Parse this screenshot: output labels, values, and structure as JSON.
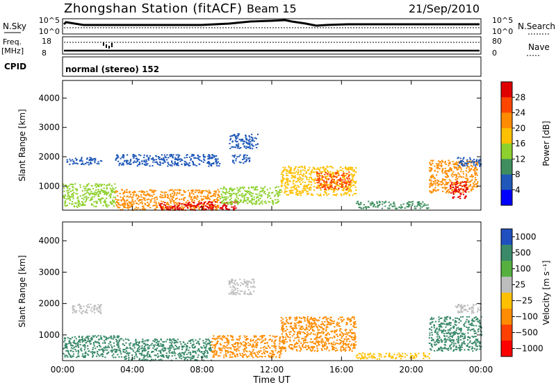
{
  "header": {
    "station": "Zhongshan Station (fitACF)",
    "beam": "Beam 15",
    "date": "21/Sep/2010"
  },
  "summary": {
    "nsky_label": "N.Sky",
    "nsky_ticks": [
      "10^5",
      "10^0"
    ],
    "nsearch_label": "N.Search",
    "nsearch_ticks": [
      "10^5",
      "10^0"
    ],
    "freq_label": [
      "Freq.",
      "[MHz]"
    ],
    "freq_ticks": [
      "18",
      "8"
    ],
    "nave_label": "Nave",
    "nave_ticks": [
      "80",
      "0"
    ],
    "cpid_label": "CPID",
    "cpid_text": "normal (stereo) 152"
  },
  "chart_data": [
    {
      "type": "heatmap",
      "title": "Power",
      "ylabel": "Slant Range [km]",
      "ylim": [
        180,
        4600
      ],
      "yticks": [
        "4000",
        "3000",
        "2000",
        "1000"
      ],
      "xlabel": "Time UT",
      "xticks": [
        "00:00",
        "04:00",
        "08:00",
        "12:00",
        "16:00",
        "20:00",
        "00:00"
      ],
      "colorbar_label": "Power [dB]",
      "colorbar_ticks": [
        "28",
        "24",
        "20",
        "16",
        "12",
        "8",
        "4"
      ],
      "colorbar_colors": [
        "#e10000",
        "#ff4600",
        "#ff8c00",
        "#ffc000",
        "#8ed12e",
        "#3f8f5e",
        "#1f58b8",
        "#0000ff"
      ],
      "regions": [
        {
          "t": [
            0.2,
            2.2
          ],
          "r": [
            1750,
            2000
          ],
          "level": "#1f58b8"
        },
        {
          "t": [
            9.5,
            11.2
          ],
          "r": [
            2300,
            2800
          ],
          "level": "#1f58b8"
        },
        {
          "t": [
            9.7,
            10.7
          ],
          "r": [
            1800,
            2100
          ],
          "level": "#1f58b8"
        },
        {
          "t": [
            3.0,
            9.0
          ],
          "r": [
            1700,
            2100
          ],
          "level": "#1f58b8"
        },
        {
          "t": [
            0.0,
            3.0
          ],
          "r": [
            300,
            1100
          ],
          "level": "#8ed12e"
        },
        {
          "t": [
            3.0,
            9.0
          ],
          "r": [
            200,
            900
          ],
          "level": "#ff8c00"
        },
        {
          "t": [
            5.5,
            10.0
          ],
          "r": [
            200,
            500
          ],
          "level": "#e10000"
        },
        {
          "t": [
            9.0,
            12.5
          ],
          "r": [
            400,
            1000
          ],
          "level": "#8ed12e"
        },
        {
          "t": [
            12.5,
            16.8
          ],
          "r": [
            700,
            1700
          ],
          "level": "#ffc000"
        },
        {
          "t": [
            14.5,
            16.5
          ],
          "r": [
            900,
            1500
          ],
          "level": "#ff4600"
        },
        {
          "t": [
            16.8,
            21.0
          ],
          "r": [
            250,
            500
          ],
          "level": "#3f8f5e"
        },
        {
          "t": [
            21.0,
            23.8
          ],
          "r": [
            800,
            1900
          ],
          "level": "#ff8c00"
        },
        {
          "t": [
            22.2,
            23.2
          ],
          "r": [
            600,
            1200
          ],
          "level": "#e10000"
        },
        {
          "t": [
            22.5,
            24.0
          ],
          "r": [
            1700,
            2000
          ],
          "level": "#1f58b8"
        }
      ]
    },
    {
      "type": "heatmap",
      "title": "Velocity",
      "ylabel": "Slant Range [km]",
      "ylim": [
        180,
        4600
      ],
      "yticks": [
        "4000",
        "3000",
        "2000",
        "1000"
      ],
      "xlabel": "Time UT",
      "xticks": [
        "00:00",
        "04:00",
        "08:00",
        "12:00",
        "16:00",
        "20:00",
        "00:00"
      ],
      "colorbar_label": "Velocity [m s⁻¹]",
      "colorbar_ticks": [
        "1000",
        "500",
        "100",
        "25",
        "−25",
        "−100",
        "−500",
        "−1000"
      ],
      "colorbar_colors": [
        "#2050c0",
        "#3a8a6a",
        "#55b040",
        "#bdbdbd",
        "#ffc000",
        "#ff8c00",
        "#ff4000",
        "#ff0000"
      ],
      "regions": [
        {
          "t": [
            0.5,
            2.2
          ],
          "r": [
            1700,
            2000
          ],
          "level": "#bdbdbd"
        },
        {
          "t": [
            9.5,
            11.0
          ],
          "r": [
            2300,
            2800
          ],
          "level": "#bdbdbd"
        },
        {
          "t": [
            0.0,
            3.5
          ],
          "r": [
            300,
            1000
          ],
          "level": "#3a8a6a"
        },
        {
          "t": [
            3.5,
            8.5
          ],
          "r": [
            200,
            900
          ],
          "level": "#3a8a6a"
        },
        {
          "t": [
            8.5,
            12.5
          ],
          "r": [
            300,
            1000
          ],
          "level": "#ff8c00"
        },
        {
          "t": [
            12.5,
            16.8
          ],
          "r": [
            500,
            1600
          ],
          "level": "#ff8c00"
        },
        {
          "t": [
            16.8,
            21.0
          ],
          "r": [
            250,
            450
          ],
          "level": "#ffc000"
        },
        {
          "t": [
            21.0,
            24.0
          ],
          "r": [
            500,
            1600
          ],
          "level": "#3a8a6a"
        },
        {
          "t": [
            22.5,
            24.0
          ],
          "r": [
            1700,
            2000
          ],
          "level": "#bdbdbd"
        }
      ]
    }
  ]
}
